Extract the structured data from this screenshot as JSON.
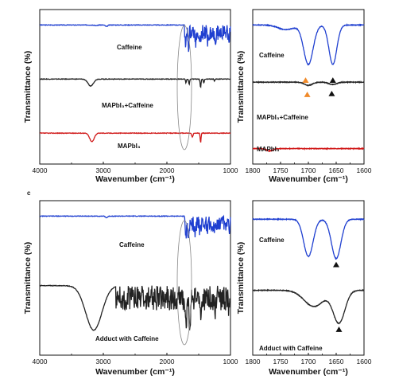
{
  "panel_letters": [
    "",
    "c"
  ],
  "chart_data": [
    {
      "type": "line",
      "title": "",
      "xlabel": "Wavenumber (cm⁻¹)",
      "ylabel": "Transmittance (%)",
      "xlim": [
        4000,
        1000
      ],
      "x_ticks": [
        "4000",
        "3000",
        "2000",
        "1000"
      ],
      "x_tick_values": [
        4000,
        3000,
        2000,
        1000
      ],
      "grid": false,
      "series": [
        {
          "name": "Caffeine",
          "color": "#1f3fd0",
          "offset": 0.9,
          "scale": 0.1,
          "noise": [
            1720,
            1000
          ],
          "peaks": [
            [
              2950,
              0.1,
              25
            ],
            [
              3110,
              0.05,
              20
            ],
            [
              1700,
              0.75,
              12
            ],
            [
              1660,
              0.85,
              12
            ],
            [
              1550,
              0.55,
              15
            ],
            [
              1480,
              0.5,
              12
            ],
            [
              1360,
              0.45,
              12
            ],
            [
              1240,
              0.4,
              12
            ],
            [
              1020,
              0.35,
              10
            ]
          ]
        },
        {
          "name": "MAPbI₃+Caffeine",
          "color": "#222222",
          "offset": 0.55,
          "scale": 0.1,
          "peaks": [
            [
              3200,
              0.45,
              60
            ],
            [
              1700,
              0.25,
              10
            ],
            [
              1650,
              0.35,
              10
            ],
            [
              1470,
              0.55,
              10
            ],
            [
              1420,
              0.25,
              10
            ],
            [
              1250,
              0.12,
              10
            ]
          ]
        },
        {
          "name": "MAPbI₃",
          "color": "#d01818",
          "offset": 0.2,
          "scale": 0.1,
          "peaks": [
            [
              3180,
              0.55,
              50
            ],
            [
              1600,
              0.25,
              15
            ],
            [
              1470,
              0.6,
              10
            ],
            [
              910,
              0.2,
              15
            ]
          ]
        }
      ]
    },
    {
      "type": "line",
      "title": "",
      "xlabel": "Wavenumber (cm⁻¹)",
      "ylabel": "Transmittance (%)",
      "xlim": [
        1800,
        1600
      ],
      "x_ticks": [
        "1800",
        "1750",
        "1700",
        "1650",
        "1600"
      ],
      "x_tick_values": [
        1800,
        1750,
        1700,
        1650,
        1600
      ],
      "grid": false,
      "series": [
        {
          "name": "Caffeine",
          "color": "#1f3fd0",
          "offset": 0.9,
          "scale": 0.3,
          "peaks": [
            [
              1700,
              0.85,
              12
            ],
            [
              1656,
              0.85,
              10
            ],
            [
              1740,
              0.1,
              20
            ]
          ]
        },
        {
          "name": "MAPbI₃+Caffeine",
          "color": "#222222",
          "offset": 0.53,
          "scale": 0.06,
          "peaks": [
            [
              1700,
              0.35,
              10
            ],
            [
              1656,
              0.25,
              10
            ]
          ]
        },
        {
          "name": "MAPbI₃",
          "color": "#d01818",
          "offset": 0.1,
          "scale": 0.06,
          "peaks": [
            [
              1770,
              0.25,
              8
            ]
          ]
        }
      ],
      "markers": [
        {
          "x": 1705,
          "series": 1,
          "color": "#f08a2a",
          "shape": "triangle-up"
        },
        {
          "x": 1656,
          "series": 1,
          "color": "#111111",
          "shape": "triangle-up"
        },
        {
          "x": 1702,
          "series": 1,
          "color": "#f08a2a",
          "shape": "triangle-up",
          "below": true
        },
        {
          "x": 1658,
          "series": 1,
          "color": "#111111",
          "shape": "triangle-up",
          "below": true
        }
      ]
    },
    {
      "type": "line",
      "title": "",
      "xlabel": "Wavenumber (cm⁻¹)",
      "ylabel": "Transmittance (%)",
      "xlim": [
        4000,
        1000
      ],
      "x_ticks": [
        "4000",
        "3000",
        "2000",
        "1000"
      ],
      "x_tick_values": [
        4000,
        3000,
        2000,
        1000
      ],
      "grid": false,
      "series": [
        {
          "name": "Caffeine",
          "color": "#1f3fd0",
          "offset": 0.9,
          "scale": 0.1,
          "noise": [
            1720,
            1000
          ],
          "peaks": [
            [
              2950,
              0.1,
              25
            ],
            [
              1700,
              0.75,
              12
            ],
            [
              1660,
              0.85,
              12
            ],
            [
              1550,
              0.55,
              15
            ],
            [
              1480,
              0.5,
              12
            ],
            [
              1360,
              0.45,
              12
            ],
            [
              1240,
              0.4,
              12
            ],
            [
              1020,
              0.35,
              10
            ]
          ]
        },
        {
          "name": "Adduct with Caffeine",
          "color": "#222222",
          "offset": 0.45,
          "scale": 0.32,
          "noise": [
            2800,
            1000
          ],
          "peaks": [
            [
              3150,
              0.9,
              180
            ],
            [
              1700,
              0.55,
              15
            ],
            [
              1640,
              0.7,
              15
            ],
            [
              1470,
              0.5,
              12
            ],
            [
              1240,
              0.4,
              12
            ],
            [
              1020,
              0.35,
              10
            ]
          ]
        }
      ]
    },
    {
      "type": "line",
      "title": "",
      "xlabel": "Wavenumber (cm⁻¹)",
      "ylabel": "Transmittance (%)",
      "xlim": [
        1800,
        1600
      ],
      "x_ticks": [
        "1800",
        "1750",
        "1700",
        "1650",
        "1600"
      ],
      "x_tick_values": [
        1800,
        1750,
        1700,
        1650,
        1600
      ],
      "grid": false,
      "series": [
        {
          "name": "Caffeine",
          "color": "#1f3fd0",
          "offset": 0.88,
          "scale": 0.3,
          "peaks": [
            [
              1700,
              0.8,
              12
            ],
            [
              1650,
              0.85,
              12
            ]
          ]
        },
        {
          "name": "Adduct with Caffeine",
          "color": "#222222",
          "offset": 0.42,
          "scale": 0.3,
          "peaks": [
            [
              1690,
              0.35,
              25
            ],
            [
              1645,
              0.7,
              15
            ]
          ]
        }
      ],
      "markers": [
        {
          "x": 1650,
          "series": 0,
          "color": "#111111",
          "shape": "triangle-up"
        },
        {
          "x": 1645,
          "series": 1,
          "color": "#111111",
          "shape": "triangle-up"
        }
      ]
    }
  ]
}
